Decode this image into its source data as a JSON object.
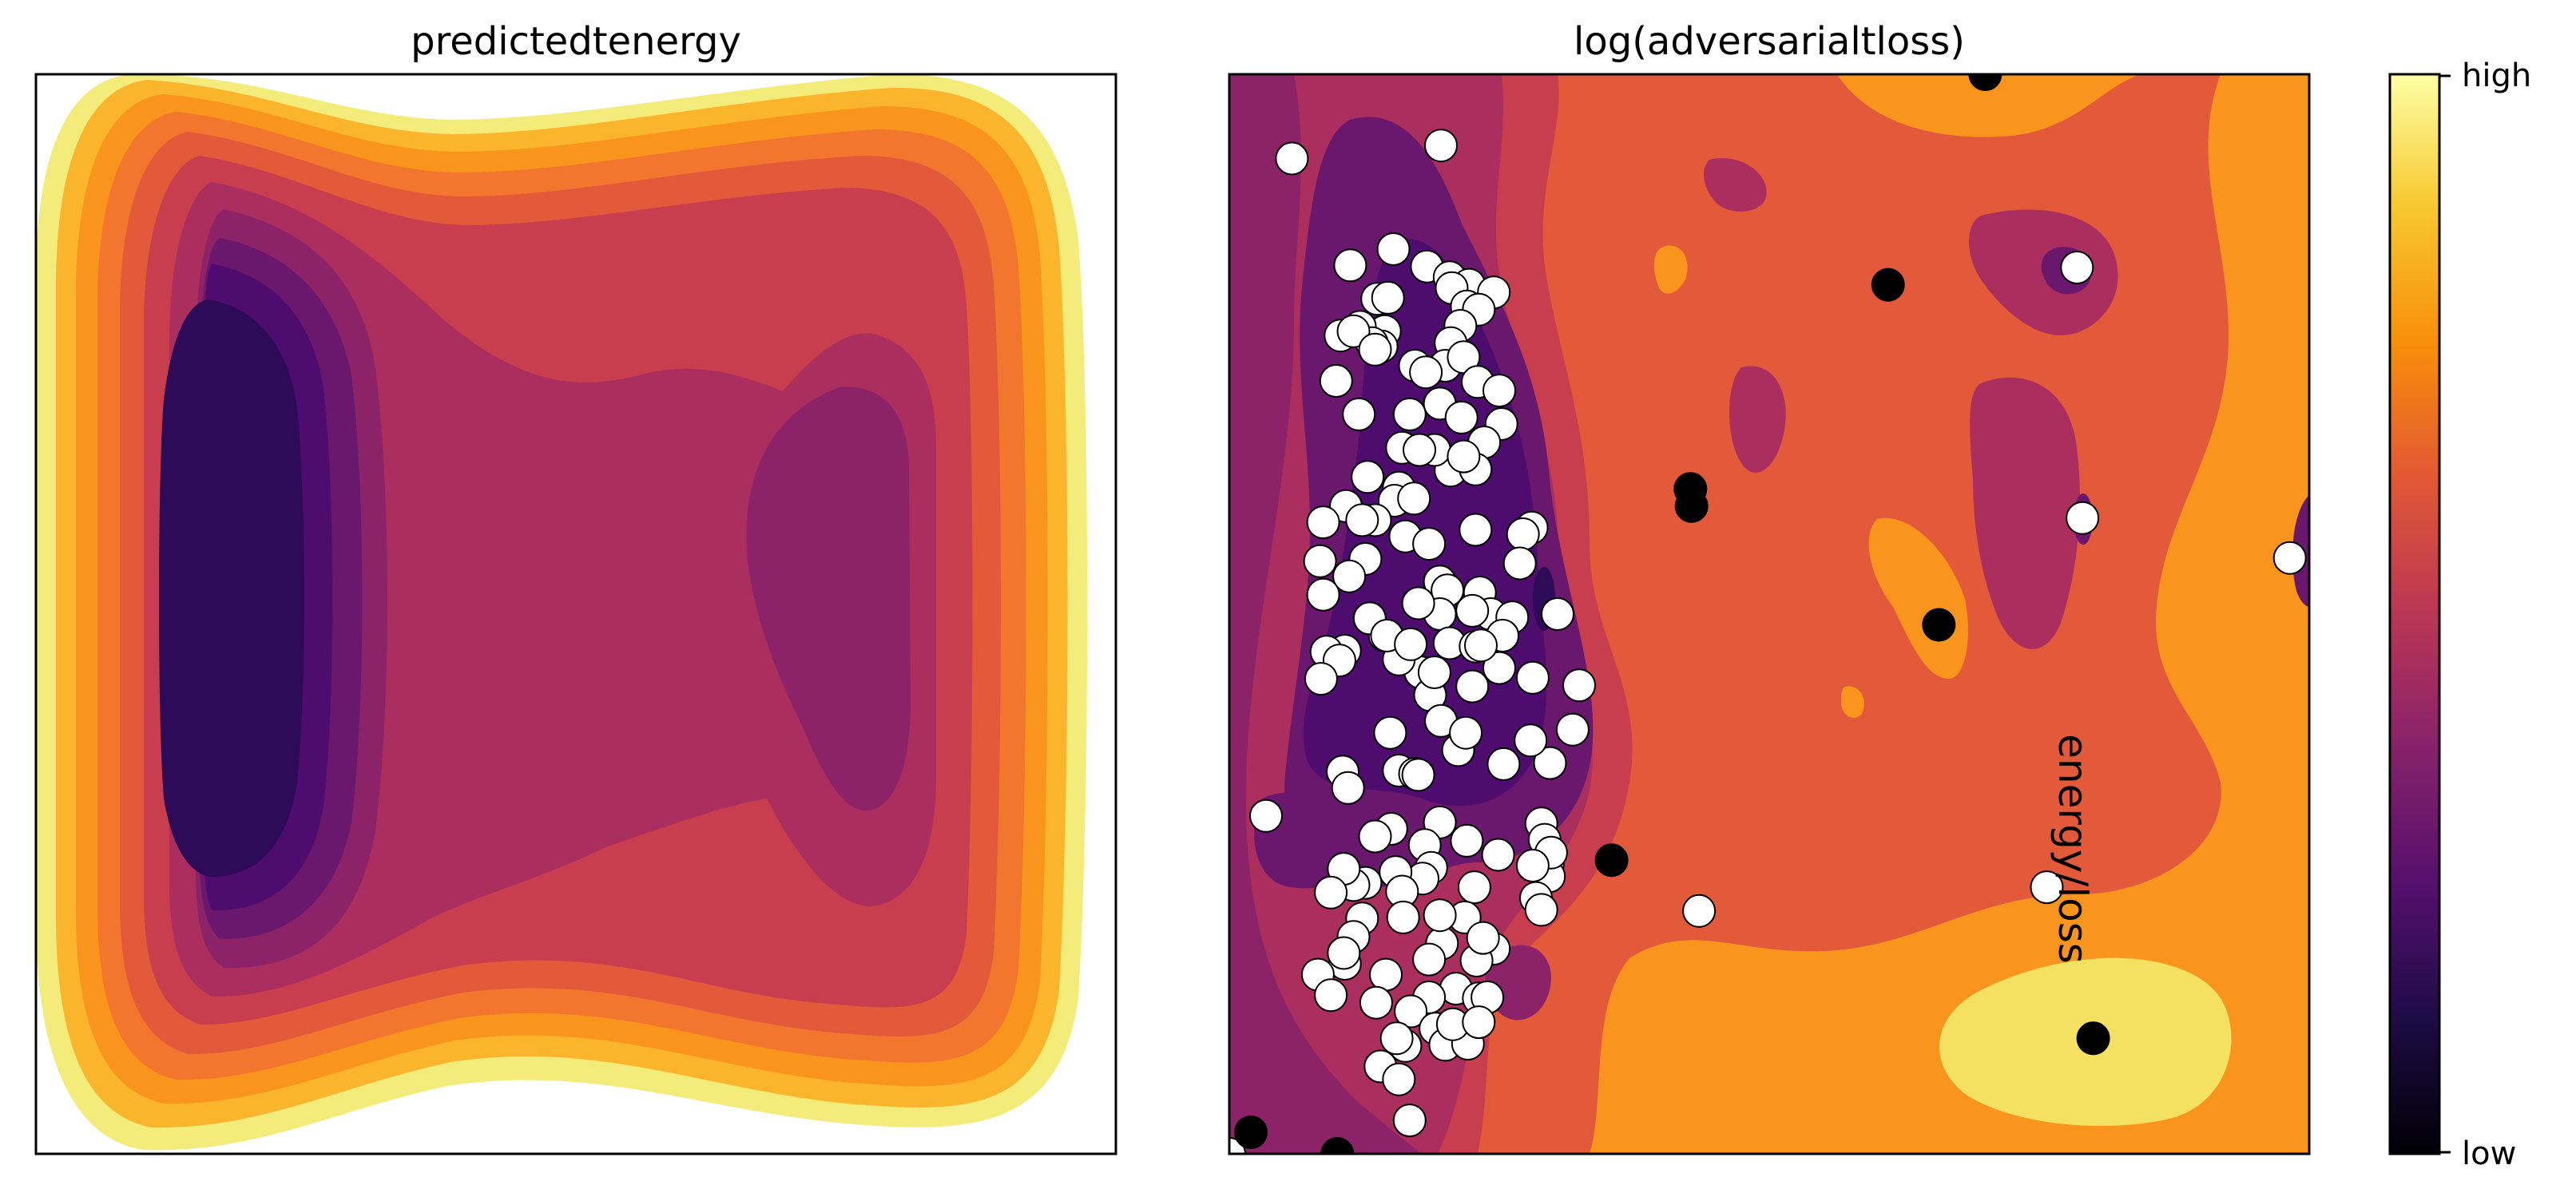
{
  "chart_data": [
    {
      "type": "contour",
      "title": "predictedtenergy",
      "xlabel": "",
      "ylabel": "",
      "xlim": [
        0,
        1
      ],
      "ylim": [
        0,
        1
      ],
      "colormap": "inferno",
      "levels": 12,
      "field": "double-well: deep minimum centered near x=0.22, shallower minimum near x=0.76 (y~0.6), high values toward all edges",
      "colors": [
        "#2d0b59",
        "#4e0d6e",
        "#6a176e",
        "#8c2369",
        "#ab2f5e",
        "#c83e4f",
        "#e25a3a",
        "#f2762e",
        "#f9951d",
        "#fbb52c",
        "#f4ec7a"
      ]
    },
    {
      "type": "contour+scatter",
      "title": "log(adversarialtloss)",
      "annotation": "energy/loss",
      "xlim": [
        0,
        1
      ],
      "ylim": [
        0,
        1
      ],
      "colormap": "inferno",
      "field": "low loss band (dark purple) along x~0.05-0.35, higher orange loss elsewhere, yellow high-loss blob near (0.78, 0.12)",
      "colors": [
        "#2d0b59",
        "#4e0d6e",
        "#6a176e",
        "#8c2369",
        "#ab2f5e",
        "#c83e4f",
        "#e25a3a",
        "#f9951d",
        "#f4e061"
      ],
      "series": [
        {
          "name": "",
          "marker_color": "#ffffff",
          "points": [
            [
              0.058,
              0.922
            ],
            [
              0.196,
              0.934
            ],
            [
              0.112,
              0.823
            ],
            [
              0.152,
              0.838
            ],
            [
              0.183,
              0.822
            ],
            [
              0.204,
              0.812
            ],
            [
              0.222,
              0.805
            ],
            [
              0.245,
              0.798
            ],
            [
              0.206,
              0.802
            ],
            [
              0.137,
              0.792
            ],
            [
              0.147,
              0.793
            ],
            [
              0.22,
              0.785
            ],
            [
              0.231,
              0.782
            ],
            [
              0.144,
              0.762
            ],
            [
              0.103,
              0.758
            ],
            [
              0.121,
              0.766
            ],
            [
              0.141,
              0.748
            ],
            [
              0.214,
              0.767
            ],
            [
              0.132,
              0.751
            ],
            [
              0.205,
              0.751
            ],
            [
              0.2,
              0.73
            ],
            [
              0.115,
              0.762
            ],
            [
              0.135,
              0.745
            ],
            [
              0.217,
              0.738
            ],
            [
              0.172,
              0.73
            ],
            [
              0.182,
              0.724
            ],
            [
              0.099,
              0.716
            ],
            [
              0.195,
              0.695
            ],
            [
              0.23,
              0.715
            ],
            [
              0.25,
              0.707
            ],
            [
              0.12,
              0.685
            ],
            [
              0.167,
              0.685
            ],
            [
              0.215,
              0.682
            ],
            [
              0.252,
              0.676
            ],
            [
              0.236,
              0.659
            ],
            [
              0.16,
              0.654
            ],
            [
              0.205,
              0.633
            ],
            [
              0.19,
              0.652
            ],
            [
              0.228,
              0.634
            ],
            [
              0.176,
              0.652
            ],
            [
              0.217,
              0.646
            ],
            [
              0.128,
              0.627
            ],
            [
              0.157,
              0.617
            ],
            [
              0.153,
              0.605
            ],
            [
              0.171,
              0.607
            ],
            [
              0.108,
              0.6
            ],
            [
              0.135,
              0.587
            ],
            [
              0.163,
              0.572
            ],
            [
              0.087,
              0.585
            ],
            [
              0.123,
              0.587
            ],
            [
              0.084,
              0.549
            ],
            [
              0.126,
              0.551
            ],
            [
              0.111,
              0.535
            ],
            [
              0.087,
              0.518
            ],
            [
              0.228,
              0.578
            ],
            [
              0.28,
              0.58
            ],
            [
              0.272,
              0.574
            ],
            [
              0.269,
              0.547
            ],
            [
              0.232,
              0.52
            ],
            [
              0.195,
              0.53
            ],
            [
              0.202,
              0.522
            ],
            [
              0.195,
              0.5
            ],
            [
              0.242,
              0.5
            ],
            [
              0.185,
              0.565
            ],
            [
              0.262,
              0.497
            ],
            [
              0.225,
              0.503
            ],
            [
              0.175,
              0.51
            ],
            [
              0.144,
              0.48
            ],
            [
              0.177,
              0.446
            ],
            [
              0.107,
              0.466
            ],
            [
              0.157,
              0.458
            ],
            [
              0.09,
              0.465
            ],
            [
              0.13,
              0.496
            ],
            [
              0.146,
              0.48
            ],
            [
              0.168,
              0.472
            ],
            [
              0.204,
              0.473
            ],
            [
              0.102,
              0.457
            ],
            [
              0.085,
              0.44
            ],
            [
              0.228,
              0.47
            ],
            [
              0.253,
              0.48
            ],
            [
              0.304,
              0.5
            ],
            [
              0.25,
              0.45
            ],
            [
              0.281,
              0.441
            ],
            [
              0.324,
              0.434
            ],
            [
              0.186,
              0.425
            ],
            [
              0.19,
              0.446
            ],
            [
              0.225,
              0.433
            ],
            [
              0.233,
              0.471
            ],
            [
              0.196,
              0.401
            ],
            [
              0.149,
              0.39
            ],
            [
              0.157,
              0.355
            ],
            [
              0.172,
              0.352
            ],
            [
              0.175,
              0.351
            ],
            [
              0.297,
              0.362
            ],
            [
              0.254,
              0.361
            ],
            [
              0.212,
              0.374
            ],
            [
              0.318,
              0.393
            ],
            [
              0.279,
              0.383
            ],
            [
              0.219,
              0.39
            ],
            [
              0.105,
              0.354
            ],
            [
              0.11,
              0.339
            ],
            [
              0.195,
              0.307
            ],
            [
              0.15,
              0.301
            ],
            [
              0.135,
              0.294
            ],
            [
              0.181,
              0.286
            ],
            [
              0.249,
              0.277
            ],
            [
              0.289,
              0.306
            ],
            [
              0.22,
              0.29
            ],
            [
              0.292,
              0.291
            ],
            [
              0.126,
              0.251
            ],
            [
              0.187,
              0.265
            ],
            [
              0.115,
              0.249
            ],
            [
              0.179,
              0.255
            ],
            [
              0.227,
              0.247
            ],
            [
              0.154,
              0.261
            ],
            [
              0.106,
              0.264
            ],
            [
              0.094,
              0.242
            ],
            [
              0.16,
              0.243
            ],
            [
              0.295,
              0.268
            ],
            [
              0.296,
              0.257
            ],
            [
              0.034,
              0.313
            ],
            [
              0.298,
              0.279
            ],
            [
              0.284,
              0.237
            ],
            [
              0.289,
              0.226
            ],
            [
              0.123,
              0.218
            ],
            [
              0.115,
              0.201
            ],
            [
              0.161,
              0.219
            ],
            [
              0.218,
              0.219
            ],
            [
              0.197,
              0.195
            ],
            [
              0.281,
              0.267
            ],
            [
              0.195,
              0.221
            ],
            [
              0.245,
              0.19
            ],
            [
              0.229,
              0.179
            ],
            [
              0.235,
              0.2
            ],
            [
              0.107,
              0.176
            ],
            [
              0.21,
              0.153
            ],
            [
              0.231,
              0.144
            ],
            [
              0.185,
              0.145
            ],
            [
              0.239,
              0.145
            ],
            [
              0.168,
              0.132
            ],
            [
              0.191,
              0.116
            ],
            [
              0.2,
              0.101
            ],
            [
              0.221,
              0.102
            ],
            [
              0.082,
              0.166
            ],
            [
              0.106,
              0.186
            ],
            [
              0.145,
              0.166
            ],
            [
              0.185,
              0.18
            ],
            [
              0.163,
              0.1
            ],
            [
              0.155,
              0.107
            ],
            [
              0.207,
              0.12
            ],
            [
              0.231,
              0.122
            ],
            [
              0.14,
              0.081
            ],
            [
              0.157,
              0.069
            ],
            [
              0.167,
              0.031
            ],
            [
              0.136,
              0.14
            ],
            [
              0.094,
              0.147
            ],
            [
              0.0,
              0.0
            ],
            [
              0.785,
              0.821
            ],
            [
              0.79,
              0.589
            ],
            [
              0.982,
              0.552
            ],
            [
              0.435,
              0.225
            ],
            [
              0.757,
              0.247
            ]
          ]
        },
        {
          "name": "",
          "marker_color": "#000000",
          "points": [
            [
              0.7,
              1.0
            ],
            [
              0.61,
              0.805
            ],
            [
              0.427,
              0.616
            ],
            [
              0.428,
              0.6
            ],
            [
              0.657,
              0.49
            ],
            [
              0.354,
              0.272
            ],
            [
              0.8,
              0.107
            ],
            [
              0.02,
              0.02
            ],
            [
              0.1,
              0.0
            ]
          ]
        }
      ]
    },
    {
      "type": "colorbar",
      "top_label": "high",
      "bottom_label": "low",
      "colormap": "inferno"
    }
  ]
}
